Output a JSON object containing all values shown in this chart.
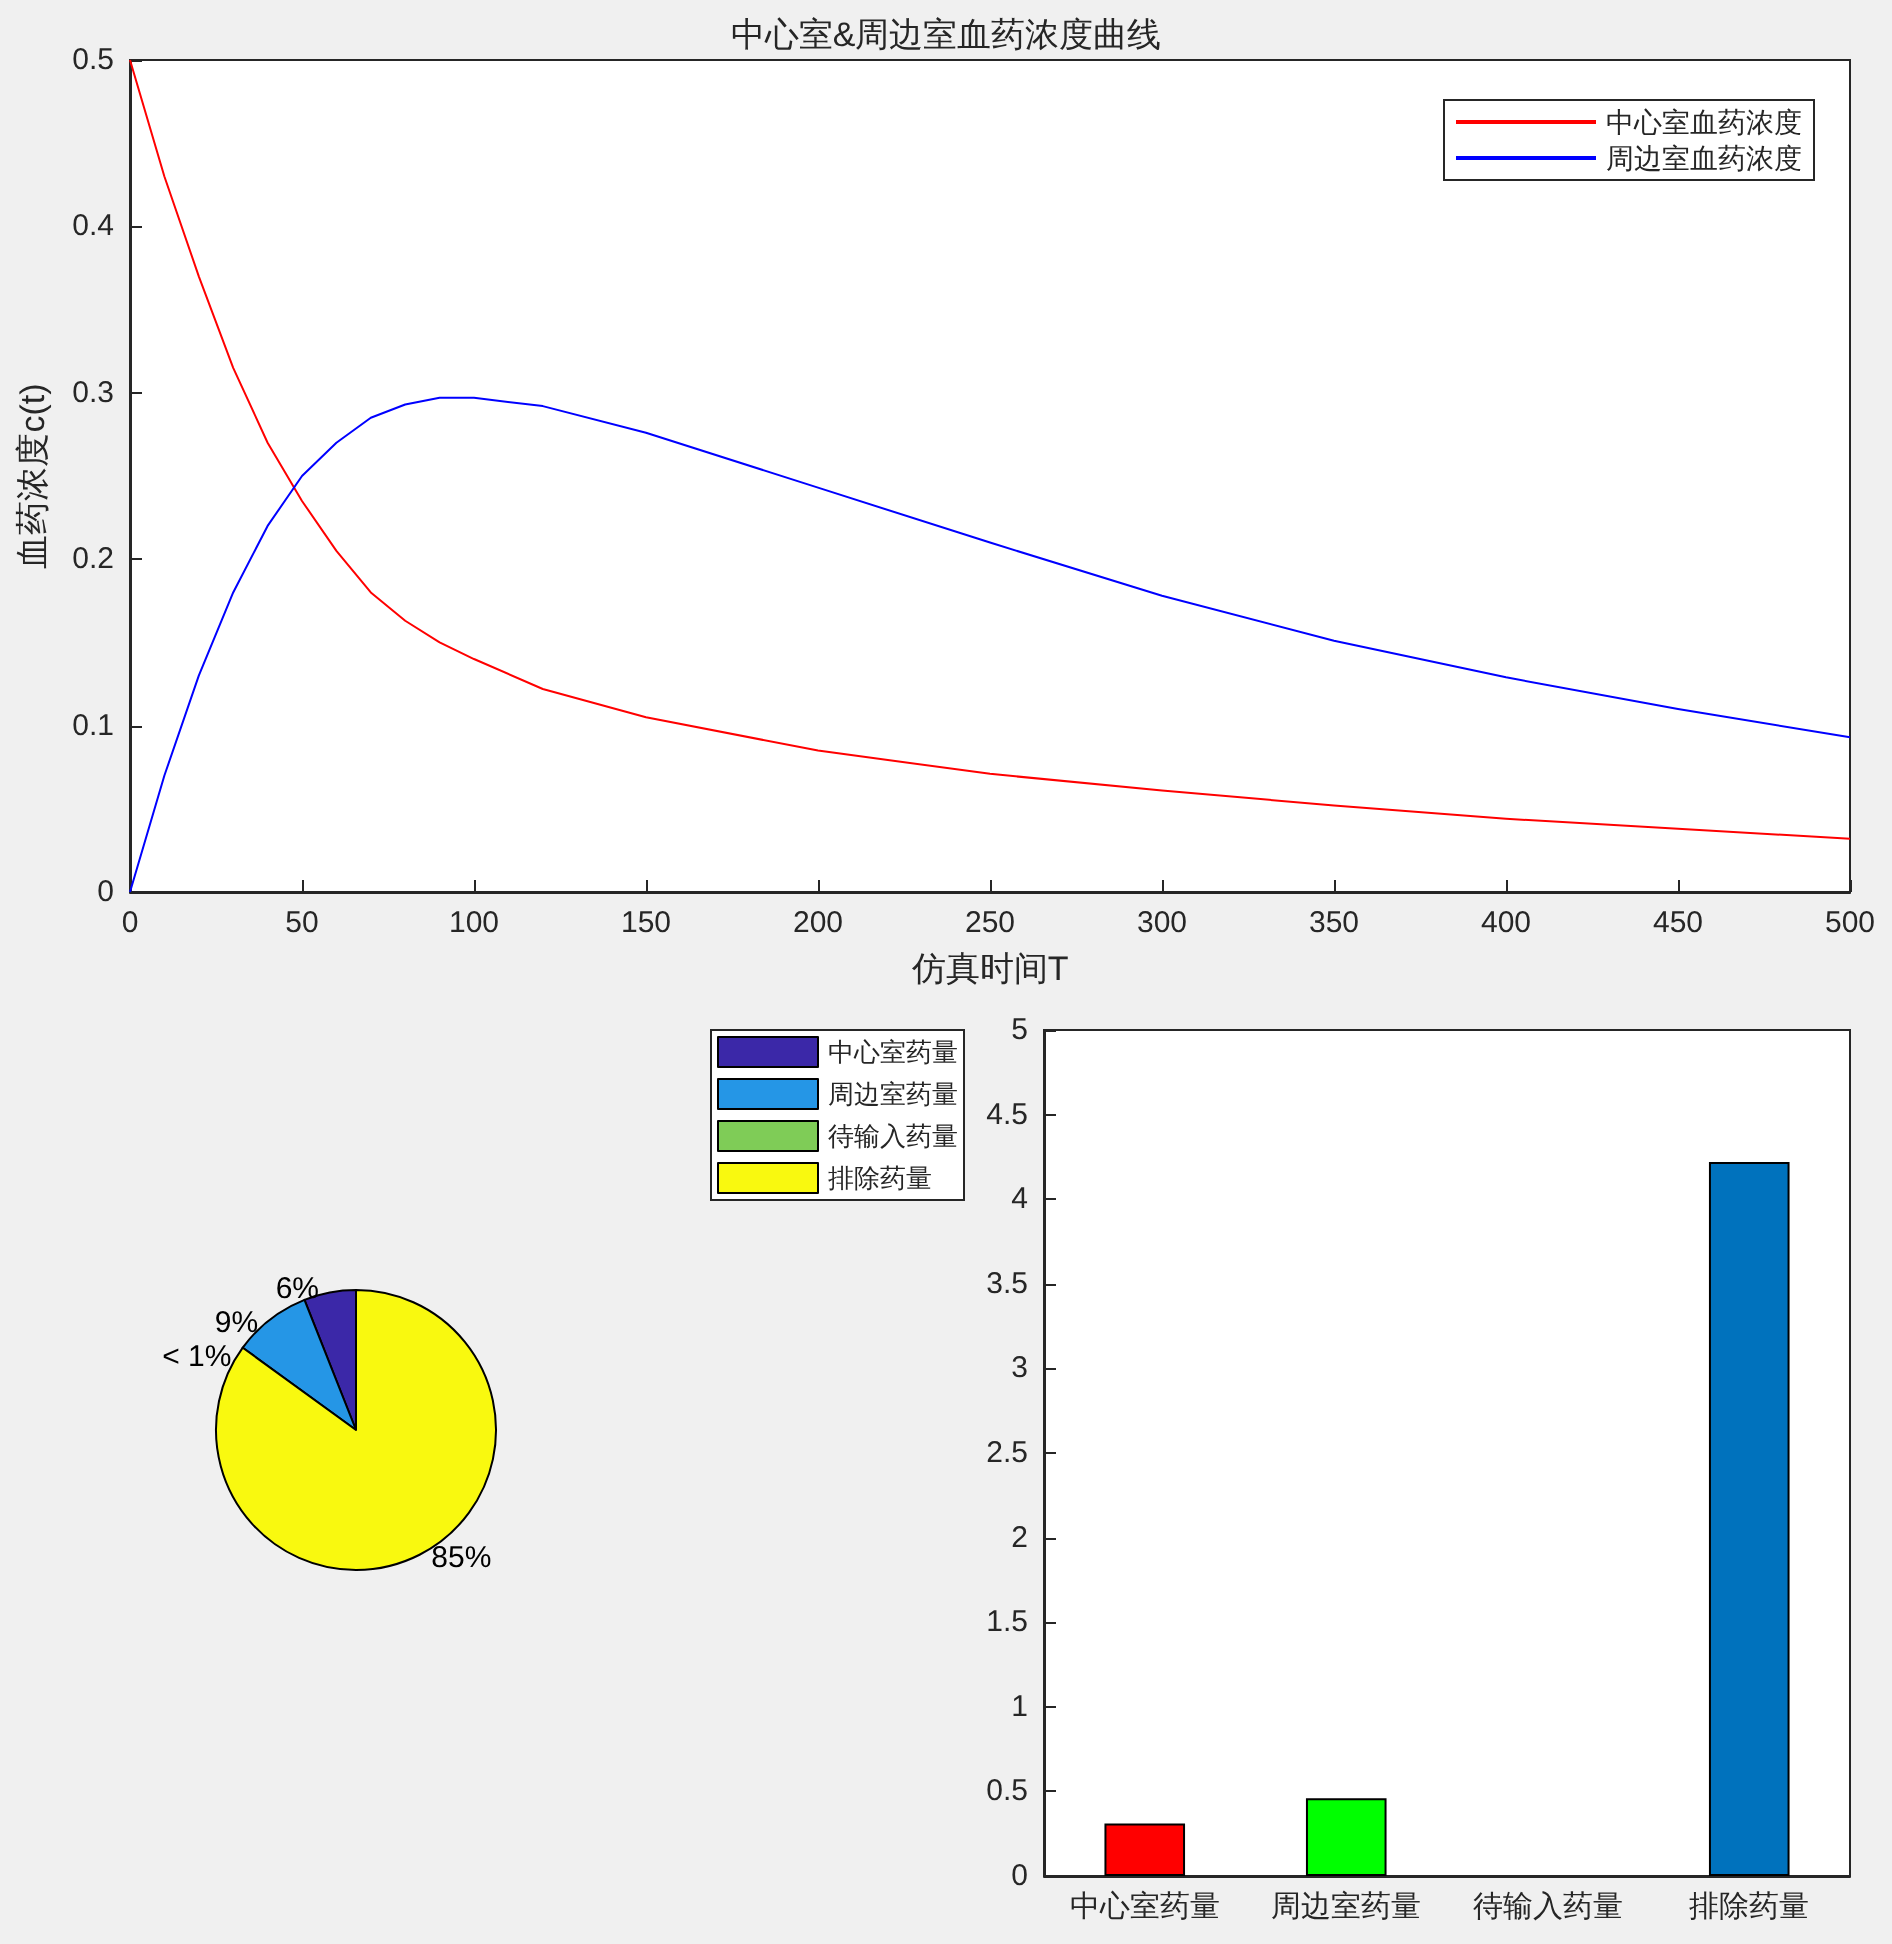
{
  "chart_data": [
    {
      "type": "line",
      "title": "中心室&周边室血药浓度曲线",
      "xlabel": "仿真时间T",
      "ylabel": "血药浓度c(t)",
      "xlim": [
        0,
        500
      ],
      "ylim": [
        0,
        0.5
      ],
      "xticks": [
        0,
        50,
        100,
        150,
        200,
        250,
        300,
        350,
        400,
        450,
        500
      ],
      "yticks": [
        0,
        0.1,
        0.2,
        0.3,
        0.4,
        0.5
      ],
      "grid": false,
      "legend": "top right",
      "marker": "none",
      "line_style": "solid",
      "x": [
        0,
        10,
        20,
        30,
        40,
        50,
        60,
        70,
        80,
        90,
        100,
        120,
        150,
        200,
        250,
        300,
        350,
        400,
        450,
        500
      ],
      "series": [
        {
          "name": "中心室血药浓度",
          "color": "#ff0000",
          "values": [
            0.5,
            0.43,
            0.37,
            0.315,
            0.27,
            0.235,
            0.205,
            0.18,
            0.163,
            0.15,
            0.14,
            0.122,
            0.105,
            0.085,
            0.071,
            0.061,
            0.052,
            0.044,
            0.038,
            0.032
          ]
        },
        {
          "name": "周边室血药浓度",
          "color": "#0000ff",
          "values": [
            0,
            0.07,
            0.13,
            0.18,
            0.22,
            0.25,
            0.27,
            0.285,
            0.293,
            0.297,
            0.297,
            0.292,
            0.276,
            0.243,
            0.21,
            0.178,
            0.151,
            0.129,
            0.11,
            0.093
          ]
        }
      ]
    },
    {
      "type": "pie",
      "categories": [
        "中心室药量",
        "周边室药量",
        "待输入药量",
        "排除药量"
      ],
      "values": [
        6,
        9,
        0,
        85
      ],
      "value_labels": [
        "6%",
        "9%",
        "< 1%",
        "85%"
      ],
      "colors": [
        "#3b28a8",
        "#2596e6",
        "#7fcc57",
        "#f9f90f"
      ],
      "legend": "top right"
    },
    {
      "type": "bar",
      "categories": [
        "中心室药量",
        "周边室药量",
        "待输入药量",
        "排除药量"
      ],
      "values": [
        0.31,
        0.46,
        0,
        4.22
      ],
      "colors": [
        "#ff0000",
        "#00ff00",
        "#7fcc57",
        "#0072bd"
      ],
      "ylim": [
        0,
        5
      ],
      "yticks": [
        0,
        0.5,
        1,
        1.5,
        2,
        2.5,
        3,
        3.5,
        4,
        4.5,
        5
      ],
      "grid": false
    }
  ]
}
